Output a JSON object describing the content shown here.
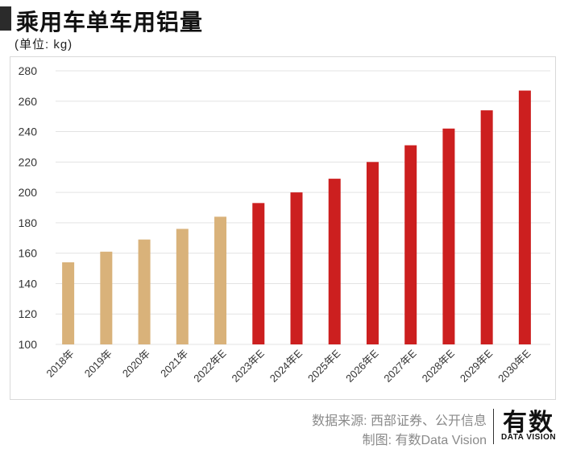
{
  "header": {
    "title": "乘用车单车用铝量",
    "unit": "(单位: kg)"
  },
  "footer": {
    "source": "数据来源: 西部证券、公开信息",
    "credit": "制图: 有数Data Vision",
    "logo_main": "有数",
    "logo_sub": "DATA VISION"
  },
  "colors": {
    "historical": "#d9b27a",
    "forecast": "#cc1f1f",
    "grid": "#e3e3e3",
    "axis_text": "#333333"
  },
  "chart_data": {
    "type": "bar",
    "title": "乘用车单车用铝量",
    "ylabel": "(单位: kg)",
    "xlabel": "",
    "ylim": [
      100,
      280
    ],
    "yticks": [
      100,
      120,
      140,
      160,
      180,
      200,
      220,
      240,
      260,
      280
    ],
    "grid": true,
    "categories": [
      "2018年",
      "2019年",
      "2020年",
      "2021年",
      "2022年E",
      "2023年E",
      "2024年E",
      "2025年E",
      "2026年E",
      "2027年E",
      "2028年E",
      "2029年E",
      "2030年E"
    ],
    "values": [
      154,
      161,
      169,
      176,
      184,
      193,
      200,
      209,
      220,
      231,
      242,
      254,
      267
    ],
    "kinds": [
      "historical",
      "historical",
      "historical",
      "historical",
      "historical",
      "forecast",
      "forecast",
      "forecast",
      "forecast",
      "forecast",
      "forecast",
      "forecast",
      "forecast"
    ]
  }
}
